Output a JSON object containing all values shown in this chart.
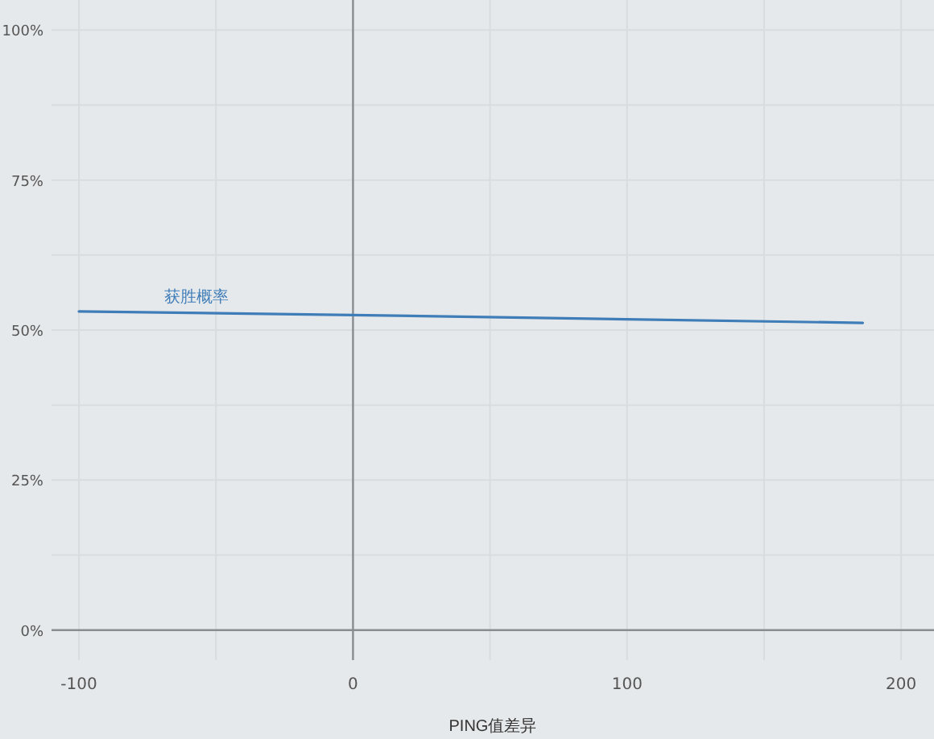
{
  "chart_data": {
    "type": "line",
    "xlabel": "PING值差异",
    "xlim": [
      -110,
      212
    ],
    "ylim": [
      -5,
      105
    ],
    "xticks": [
      -100,
      {
        "value": -50,
        "label": null
      },
      0,
      {
        "value": 50,
        "label": null
      },
      100,
      {
        "value": 150,
        "label": null
      },
      200
    ],
    "yticks": [
      {
        "value": 0,
        "label": "0%"
      },
      {
        "value": 12.5,
        "label": null
      },
      {
        "value": 25,
        "label": "25%"
      },
      {
        "value": 37.5,
        "label": null
      },
      {
        "value": 50,
        "label": "50%"
      },
      {
        "value": 62.5,
        "label": null
      },
      {
        "value": 75,
        "label": "75%"
      },
      {
        "value": 87.5,
        "label": null
      },
      {
        "value": 100,
        "label": "100%"
      }
    ],
    "grid": true,
    "marker": "none",
    "line_style": "solid",
    "series": [
      {
        "name": "获胜概率",
        "color": "#3f7db8",
        "x": [
          -100,
          0,
          186
        ],
        "values": [
          53.1,
          52.5,
          51.2
        ]
      }
    ]
  }
}
